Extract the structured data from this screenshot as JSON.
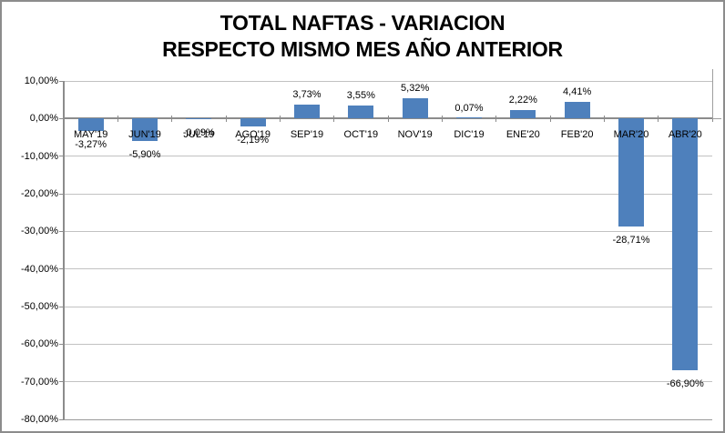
{
  "window": {
    "background": "#FFFFFF",
    "border_color": "#8C8C8C"
  },
  "chart_data": {
    "type": "bar",
    "title_line1": "TOTAL NAFTAS - VARIACION",
    "title_line2": "RESPECTO MISMO MES AÑO ANTERIOR",
    "xlabel": "",
    "ylabel": "",
    "legend": "none",
    "grid": true,
    "categories": [
      "MAY'19",
      "JUN'19",
      "JUL'19",
      "AGO'19",
      "SEP'19",
      "OCT'19",
      "NOV'19",
      "DIC'19",
      "ENE'20",
      "FEB'20",
      "MAR'20",
      "ABR'20"
    ],
    "values": [
      -3.27,
      -5.9,
      -0.09,
      -2.19,
      3.73,
      3.55,
      5.32,
      0.07,
      2.22,
      4.41,
      -28.71,
      -66.9
    ],
    "data_labels": [
      "-3,27%",
      "-5,90%",
      "-0,09%",
      "-2,19%",
      "3,73%",
      "3,55%",
      "5,32%",
      "0,07%",
      "2,22%",
      "4,41%",
      "-28,71%",
      "-66,90%"
    ],
    "y_axis": {
      "min": -80,
      "max": 10,
      "step": 10,
      "tick_labels": [
        "10,00%",
        "0,00%",
        "-10,00%",
        "-20,00%",
        "-30,00%",
        "-40,00%",
        "-50,00%",
        "-60,00%",
        "-70,00%",
        "-80,00%"
      ]
    },
    "bar_color": "#4E80BC",
    "gridline_color": "#C2C2C2",
    "axis_color": "#8C8C8C",
    "text_color": "#000000"
  }
}
